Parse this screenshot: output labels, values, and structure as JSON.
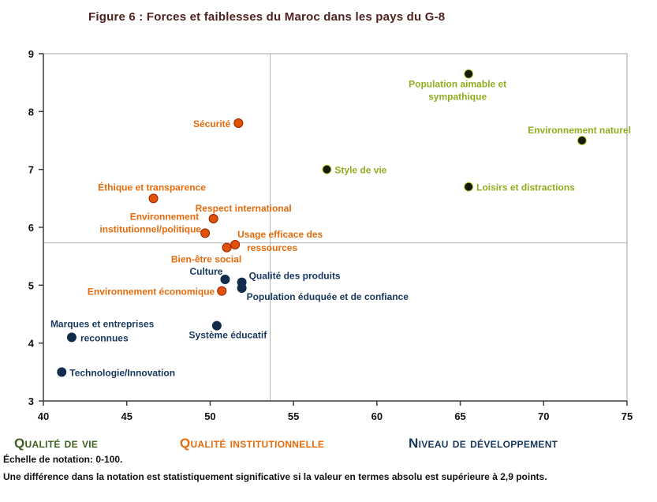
{
  "title": "Figure 6 : Forces et faiblesses du Maroc dans les pays du G-8",
  "colors": {
    "title": "#4e221d",
    "axis": "#3c3c3c",
    "plot_border": "#a0a0a0",
    "reference_line": "#b5b5b5",
    "vie_dot": "#181808",
    "vie_dot_ring": "#c3d130",
    "vie_label": "#8fad1e",
    "inst_dot": "#e05206",
    "inst_dot_ring": "#9c1c00",
    "inst_label": "#e56b0c",
    "dev_dot": "#122c4e",
    "dev_label": "#17375e"
  },
  "chart_data": {
    "type": "scatter",
    "title": "Figure 6 : Forces et faiblesses du Maroc dans les pays du G-8",
    "xlabel": "",
    "ylabel": "",
    "xlim": [
      40,
      75
    ],
    "ylim": [
      3,
      9
    ],
    "x_ticks": [
      40,
      45,
      50,
      55,
      60,
      65,
      70,
      75
    ],
    "y_ticks": [
      3,
      4,
      5,
      6,
      7,
      8,
      9
    ],
    "grid": false,
    "legend_position": "bottom",
    "reference_lines": {
      "vertical_x": 53.6,
      "horizontal_y": 5.73
    },
    "series": [
      {
        "name": "Qualité de vie",
        "color_key": "vie",
        "points": [
          {
            "label": "Population aimable et sympathique",
            "x": 65.5,
            "y": 8.65,
            "anchor": "middle",
            "lines": [
              {
                "t": "Population aimable et",
                "dx": -14,
                "dy": 17
              },
              {
                "t": "sympathique",
                "dx": -14,
                "dy": 33
              }
            ]
          },
          {
            "label": "Environnement naturel",
            "x": 72.3,
            "y": 7.5,
            "anchor": "end",
            "lines": [
              {
                "t": "Environnement naturel",
                "dx": 62,
                "dy": -9
              }
            ]
          },
          {
            "label": "Style de vie",
            "x": 57.0,
            "y": 7.0,
            "anchor": "start",
            "lines": [
              {
                "t": "Style de vie",
                "dx": 10,
                "dy": 5
              }
            ]
          },
          {
            "label": "Loisirs et distractions",
            "x": 65.5,
            "y": 6.7,
            "anchor": "start",
            "lines": [
              {
                "t": "Loisirs et distractions",
                "dx": 10,
                "dy": 5
              }
            ]
          }
        ]
      },
      {
        "name": "Qualité institutionnelle",
        "color_key": "inst",
        "points": [
          {
            "label": "Sécurité",
            "x": 51.7,
            "y": 7.8,
            "anchor": "end",
            "lines": [
              {
                "t": "Sécurité",
                "dx": -10,
                "dy": 5
              }
            ]
          },
          {
            "label": "Éthique et transparence",
            "x": 46.6,
            "y": 6.5,
            "anchor": "middle",
            "lines": [
              {
                "t": "Éthique et transparence",
                "dx": -2,
                "dy": -10
              }
            ]
          },
          {
            "label": "Respect international",
            "x": 50.2,
            "y": 6.15,
            "anchor": "middle",
            "lines": [
              {
                "t": "Respect international",
                "dx": 38,
                "dy": -9
              }
            ]
          },
          {
            "label": "Environnement institutionnel/politique",
            "x": 49.7,
            "y": 5.9,
            "anchor": "end",
            "lines": [
              {
                "t": "Environnement",
                "dx": -8,
                "dy": -17
              },
              {
                "t": "institutionnel/politique",
                "dx": -5,
                "dy": -1
              }
            ]
          },
          {
            "label": "Usage efficace des ressources",
            "x": 51.5,
            "y": 5.7,
            "anchor": "middle",
            "lines": [
              {
                "t": "Usage efficace des",
                "dx": 57,
                "dy": -9
              },
              {
                "t": "ressources",
                "dx": 47,
                "dy": 8
              }
            ]
          },
          {
            "label": "Bien-être social",
            "x": 51.0,
            "y": 5.65,
            "anchor": "middle",
            "lines": [
              {
                "t": "Bien-être social",
                "dx": -26,
                "dy": 19
              }
            ]
          },
          {
            "label": "Environnement économique",
            "x": 50.7,
            "y": 4.9,
            "anchor": "end",
            "lines": [
              {
                "t": "Environnement économique",
                "dx": -9,
                "dy": 5
              }
            ]
          }
        ]
      },
      {
        "name": "Niveau de développement",
        "color_key": "dev",
        "points": [
          {
            "label": "Culture",
            "x": 50.9,
            "y": 5.1,
            "anchor": "end",
            "lines": [
              {
                "t": "Culture",
                "dx": -3,
                "dy": -6
              }
            ]
          },
          {
            "label": "Qualité des produits",
            "x": 51.9,
            "y": 5.05,
            "anchor": "start",
            "lines": [
              {
                "t": "Qualité des produits",
                "dx": 9,
                "dy": -4
              }
            ]
          },
          {
            "label": "Population éduquée et de confiance",
            "x": 51.9,
            "y": 4.95,
            "anchor": "start",
            "lines": [
              {
                "t": "Population éduquée et de confiance",
                "dx": 6,
                "dy": 15
              }
            ]
          },
          {
            "label": "Marques et entreprises reconnues",
            "x": 41.7,
            "y": 4.1,
            "anchor": "start",
            "lines": [
              {
                "t": "Marques et entreprises",
                "dx": -27,
                "dy": -13
              },
              {
                "t": "reconnues",
                "dx": 11,
                "dy": 5
              }
            ]
          },
          {
            "label": "Système éducatif",
            "x": 50.4,
            "y": 4.3,
            "anchor": "middle",
            "lines": [
              {
                "t": "Système éducatif",
                "dx": 14,
                "dy": 16
              }
            ]
          },
          {
            "label": "Technologie/Innovation",
            "x": 41.1,
            "y": 3.5,
            "anchor": "start",
            "lines": [
              {
                "t": "Technologie/Innovation",
                "dx": 10,
                "dy": 5
              }
            ]
          }
        ]
      }
    ]
  },
  "legend": [
    {
      "label": "Qualité de vie"
    },
    {
      "label": "Qualité institutionnelle"
    },
    {
      "label": "Niveau de développement"
    }
  ],
  "footnotes": [
    "Échelle de notation: 0-100.",
    "Une différence dans la notation est statistiquement significative si la valeur en termes absolu est supérieure à 2,9 points."
  ]
}
